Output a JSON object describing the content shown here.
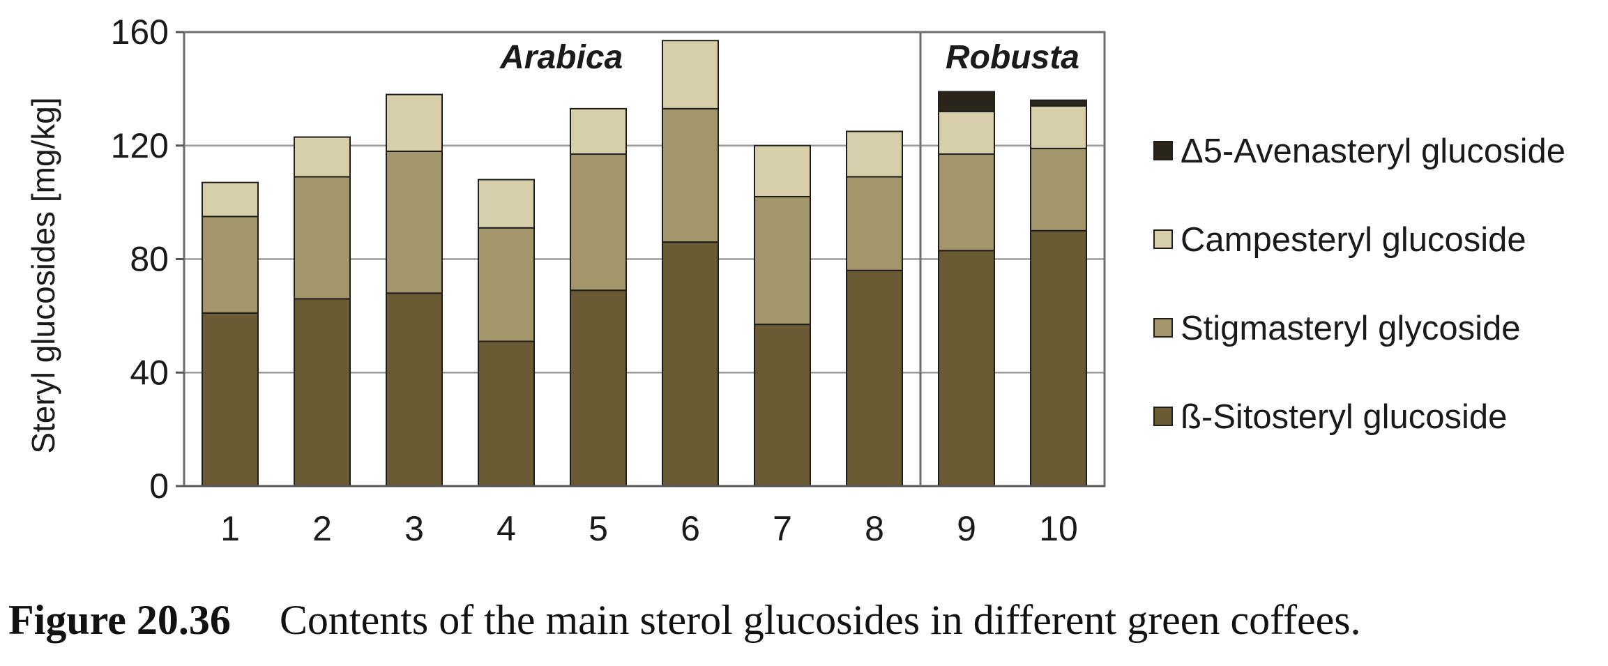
{
  "chart_data": {
    "type": "bar",
    "stacked": true,
    "categories": [
      "1",
      "2",
      "3",
      "4",
      "5",
      "6",
      "7",
      "8",
      "9",
      "10"
    ],
    "ylabel": "Steryl glucosides [mg/kg]",
    "xlabel": "",
    "ylim": [
      0,
      160
    ],
    "yticks": [
      0,
      40,
      80,
      120,
      160
    ],
    "grid": true,
    "legend_position": "right",
    "groups": [
      {
        "label": "Arabica",
        "categories": [
          "1",
          "2",
          "3",
          "4",
          "5",
          "6",
          "7",
          "8"
        ]
      },
      {
        "label": "Robusta",
        "categories": [
          "9",
          "10"
        ]
      }
    ],
    "series": [
      {
        "name": "ß-Sitosteryl glucoside",
        "color": "#6b5b35",
        "values": [
          61,
          66,
          68,
          51,
          69,
          86,
          57,
          76,
          83,
          90
        ]
      },
      {
        "name": "Stigmasteryl glycoside",
        "color": "#a3966b",
        "values": [
          34,
          43,
          50,
          40,
          48,
          47,
          45,
          33,
          34,
          29
        ]
      },
      {
        "name": "Campesteryl glucoside",
        "color": "#d7ceaa",
        "values": [
          12,
          14,
          20,
          17,
          16,
          24,
          18,
          16,
          15,
          15
        ]
      },
      {
        "name": "Δ5-Avenasteryl glucoside",
        "color": "#2b2419",
        "values": [
          0,
          0,
          0,
          0,
          0,
          0,
          0,
          0,
          7,
          2
        ]
      }
    ]
  },
  "caption": {
    "label": "Figure 20.36",
    "text": "Contents of the main sterol glucosides in different green coffees."
  }
}
